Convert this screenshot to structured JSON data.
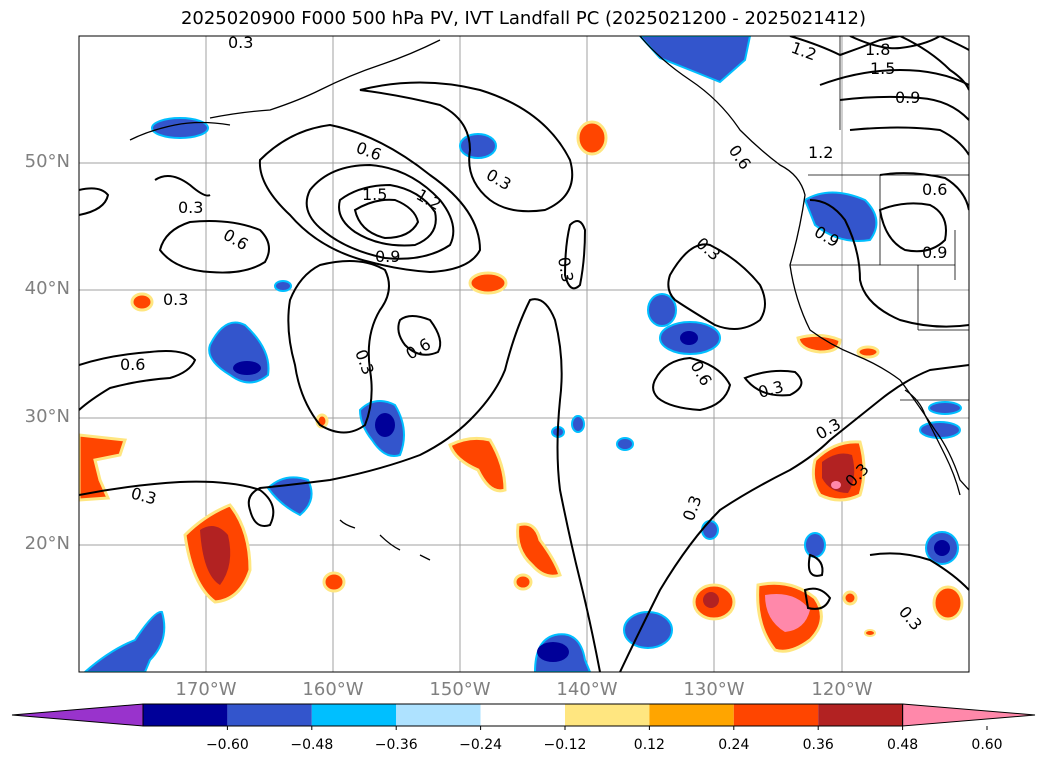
{
  "title": "2025020900 F000 500 hPa PV, IVT Landfall PC (2025021200 - 2025021412)",
  "lat_labels": [
    "50°N",
    "40°N",
    "30°N",
    "20°N"
  ],
  "lon_labels": [
    "170°W",
    "160°W",
    "150°W",
    "140°W",
    "130°W",
    "120°W"
  ],
  "contour_labels": [
    "0.3",
    "1.2",
    "1.8",
    "1.5",
    "0.9",
    "0.6",
    "0.3",
    "1.5",
    "1.2",
    "0.9",
    "0.6",
    "0.3",
    "0.3",
    "0.6",
    "0.3",
    "0.3",
    "0.6",
    "0.3",
    "0.6",
    "0.3",
    "1.2",
    "0.6",
    "0.9",
    "0.9",
    "0.3",
    "0.3",
    "0.3",
    "0.3",
    "0.6",
    "0.3"
  ],
  "colorbar": {
    "ticks": [
      "−0.60",
      "−0.48",
      "−0.36",
      "−0.24",
      "−0.12",
      "0.12",
      "0.24",
      "0.36",
      "0.48",
      "0.60"
    ],
    "colors": [
      "#9933cc",
      "#000099",
      "#3355cc",
      "#00bfff",
      "#aee2ff",
      "#ffffff",
      "#ffe680",
      "#ffa500",
      "#ff4500",
      "#b22222",
      "#ff88aa"
    ]
  },
  "colors": {
    "grid": "#a0a0a0",
    "contour": "#000000"
  }
}
